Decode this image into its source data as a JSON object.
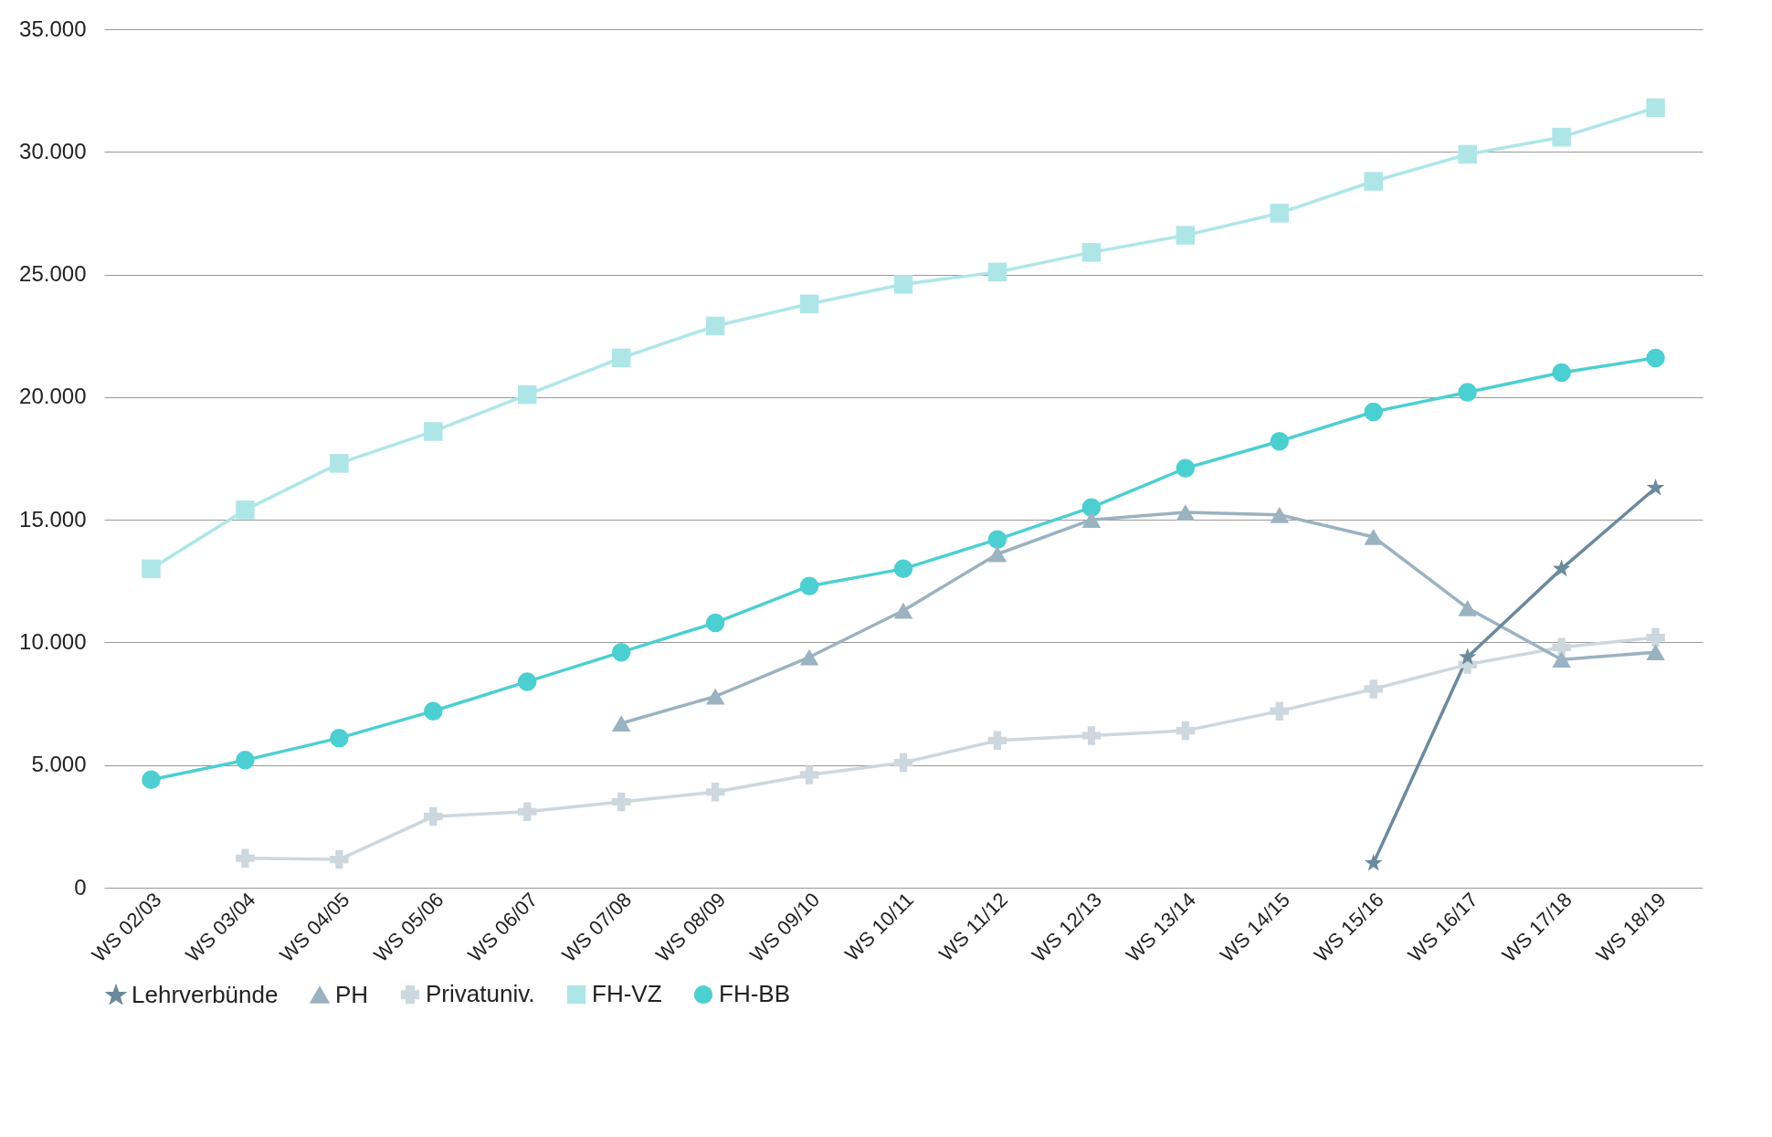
{
  "chart_data": {
    "type": "line",
    "categories": [
      "WS 02/03",
      "WS 03/04",
      "WS 04/05",
      "WS 05/06",
      "WS 06/07",
      "WS 07/08",
      "WS 08/09",
      "WS 09/10",
      "WS 10/11",
      "WS 11/12",
      "WS 12/13",
      "WS 13/14",
      "WS 14/15",
      "WS 15/16",
      "WS 16/17",
      "WS 17/18",
      "WS 18/19"
    ],
    "series": [
      {
        "name": "Lehrverbünde",
        "color": "#6b8a9c",
        "marker": "star",
        "values": [
          null,
          null,
          null,
          null,
          null,
          null,
          null,
          null,
          null,
          null,
          null,
          null,
          null,
          1000,
          9400,
          13000,
          16300
        ]
      },
      {
        "name": "PH",
        "color": "#9bb2c0",
        "marker": "triangle",
        "values": [
          null,
          null,
          null,
          null,
          null,
          6700,
          7800,
          9400,
          11300,
          13600,
          15000,
          15300,
          15200,
          14300,
          11400,
          9300,
          9600
        ]
      },
      {
        "name": "Privatuniv.",
        "color": "#cdd7de",
        "marker": "cross",
        "values": [
          null,
          1200,
          1150,
          2900,
          3100,
          3500,
          3900,
          4600,
          5100,
          6000,
          6200,
          6400,
          7200,
          8100,
          9100,
          9800,
          10200
        ]
      },
      {
        "name": "FH-VZ",
        "color": "#aee6e8",
        "marker": "square",
        "values": [
          13000,
          15400,
          17300,
          18600,
          20100,
          21600,
          22900,
          23800,
          24600,
          25100,
          25900,
          26600,
          27500,
          28800,
          29900,
          30600,
          31800
        ]
      },
      {
        "name": "FH-BB",
        "color": "#4ccfd1",
        "marker": "circle",
        "values": [
          4400,
          5200,
          6100,
          7200,
          8400,
          9600,
          10800,
          12300,
          13000,
          14200,
          15500,
          17100,
          18200,
          19400,
          20200,
          21000,
          21600
        ]
      }
    ],
    "ylim": [
      0,
      35000
    ],
    "yticks": [
      {
        "value": 0,
        "label": "0"
      },
      {
        "value": 5000,
        "label": "5.000"
      },
      {
        "value": 10000,
        "label": "10.000"
      },
      {
        "value": 15000,
        "label": "15.000"
      },
      {
        "value": 20000,
        "label": "20.000"
      },
      {
        "value": 25000,
        "label": "25.000"
      },
      {
        "value": 30000,
        "label": "30.000"
      },
      {
        "value": 35000,
        "label": "35.000"
      }
    ],
    "grid": "y",
    "legend": "bottom"
  }
}
